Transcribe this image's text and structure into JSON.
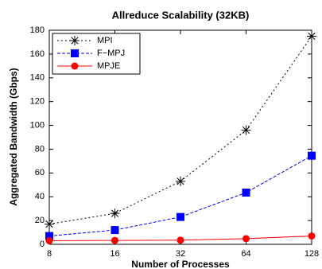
{
  "chart_data": {
    "type": "line",
    "title": "Allreduce Scalability (32KB)",
    "x_label": "Number of Processes",
    "y_label": "Aggregated Bandwidth (Gbps)",
    "categories": [
      "8",
      "16",
      "32",
      "64",
      "128"
    ],
    "series": [
      {
        "name": "MPI",
        "color": "#000000",
        "linestyle": "dotted",
        "marker": "asterisk",
        "values": [
          17,
          26,
          53,
          96,
          175
        ]
      },
      {
        "name": "F−MPJ",
        "color": "#0000ff",
        "linestyle": "dashed",
        "marker": "square",
        "values": [
          7,
          12,
          23,
          43.5,
          74.5
        ]
      },
      {
        "name": "MPJE",
        "color": "#ff0000",
        "linestyle": "solid",
        "marker": "circle",
        "values": [
          3,
          3.3,
          3.5,
          4.8,
          7
        ]
      }
    ],
    "ylim": [
      0,
      180
    ],
    "yticks": [
      0,
      20,
      40,
      60,
      80,
      100,
      120,
      140,
      160,
      180
    ],
    "legend": "upper left"
  }
}
